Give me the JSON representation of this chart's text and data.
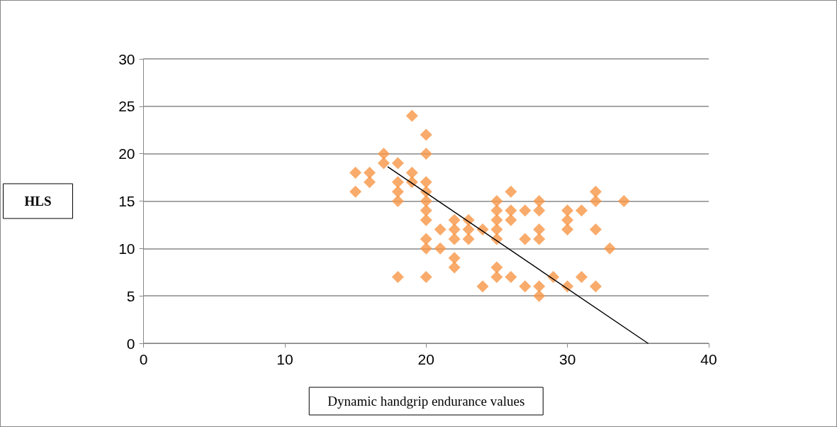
{
  "chart_data": {
    "type": "scatter",
    "xlabel": "Dynamic handgrip endurance values",
    "ylabel": "HLS",
    "marker": "diamond",
    "grid": "y",
    "xlim": [
      0,
      40
    ],
    "xticks": [
      0,
      10,
      20,
      30,
      40
    ],
    "ylim": [
      0,
      30
    ],
    "yticks": [
      0,
      5,
      10,
      15,
      20,
      25,
      30
    ],
    "series": [
      {
        "color": "#f79646",
        "x": [
          15,
          15,
          16,
          16,
          17,
          17,
          18,
          18,
          18,
          18,
          18,
          19,
          19,
          19,
          20,
          20,
          20,
          20,
          20,
          20,
          20,
          20,
          20,
          20,
          21,
          21,
          22,
          22,
          22,
          22,
          22,
          23,
          23,
          23,
          24,
          24,
          25,
          25,
          25,
          25,
          25,
          25,
          25,
          26,
          26,
          26,
          26,
          27,
          27,
          27,
          28,
          28,
          28,
          28,
          28,
          28,
          29,
          30,
          30,
          30,
          30,
          31,
          31,
          32,
          32,
          32,
          32,
          33,
          34
        ],
        "values": [
          18,
          16,
          18,
          17,
          20,
          19,
          19,
          17,
          16,
          15,
          7,
          24,
          18,
          17,
          22,
          20,
          17,
          16,
          15,
          14,
          13,
          11,
          10,
          7,
          12,
          10,
          13,
          12,
          11,
          9,
          8,
          13,
          12,
          11,
          12,
          6,
          15,
          14,
          13,
          12,
          11,
          8,
          7,
          16,
          14,
          13,
          7,
          14,
          11,
          6,
          15,
          14,
          12,
          11,
          6,
          5,
          7,
          14,
          13,
          12,
          6,
          14,
          7,
          16,
          15,
          12,
          6,
          10,
          15
        ]
      },
      {
        "type": "line",
        "color": "#000000",
        "marker": "none",
        "x": [
          17.3,
          35.7
        ],
        "values": [
          18.6,
          0
        ]
      }
    ]
  }
}
